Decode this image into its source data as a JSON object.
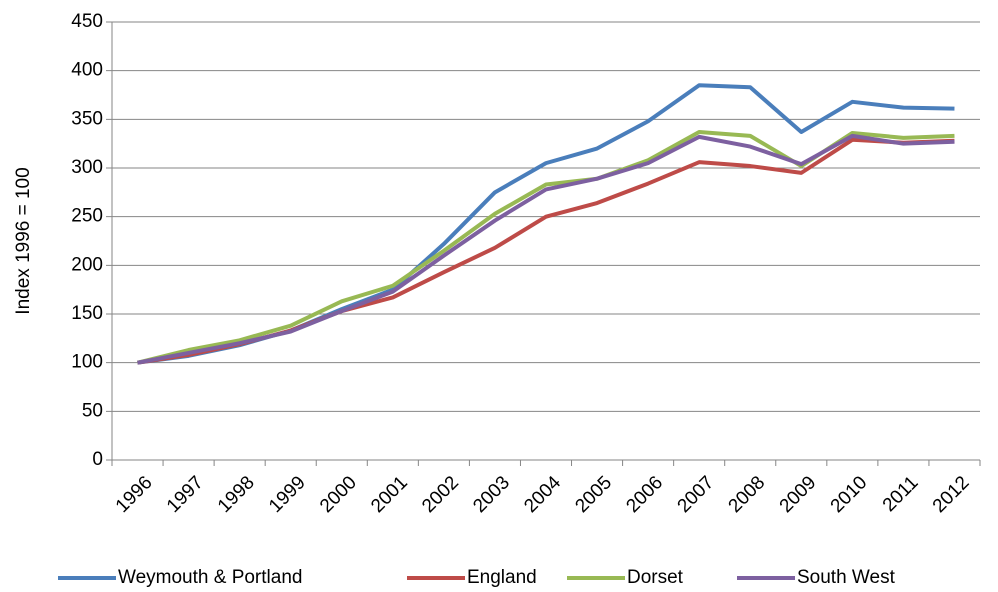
{
  "chart_data": {
    "type": "line",
    "y_label": "Index 1996 = 100",
    "categories": [
      "1996",
      "1997",
      "1998",
      "1999",
      "2000",
      "2001",
      "2002",
      "2003",
      "2004",
      "2005",
      "2006",
      "2007",
      "2008",
      "2009",
      "2010",
      "2011",
      "2012"
    ],
    "series": [
      {
        "name": "Weymouth & Portland",
        "color": "#4a7ebb",
        "values": [
          100,
          107,
          118,
          133,
          155,
          175,
          222,
          275,
          305,
          320,
          348,
          385,
          383,
          337,
          368,
          362,
          361
        ]
      },
      {
        "name": "England",
        "color": "#be4b48",
        "values": [
          100,
          108,
          119,
          133,
          153,
          167,
          193,
          218,
          250,
          264,
          284,
          306,
          302,
          295,
          329,
          326,
          328
        ]
      },
      {
        "name": "Dorset",
        "color": "#98b954",
        "values": [
          100,
          113,
          123,
          138,
          163,
          179,
          215,
          253,
          283,
          289,
          308,
          337,
          333,
          302,
          336,
          331,
          333
        ]
      },
      {
        "name": "South West",
        "color": "#7d60a0",
        "values": [
          100,
          110,
          120,
          132,
          153,
          173,
          210,
          246,
          278,
          289,
          305,
          332,
          322,
          304,
          333,
          325,
          327
        ]
      }
    ],
    "ylim": [
      0,
      450
    ],
    "yticks": [
      0,
      50,
      100,
      150,
      200,
      250,
      300,
      350,
      400,
      450
    ],
    "grid": true,
    "legend": "bottom"
  }
}
